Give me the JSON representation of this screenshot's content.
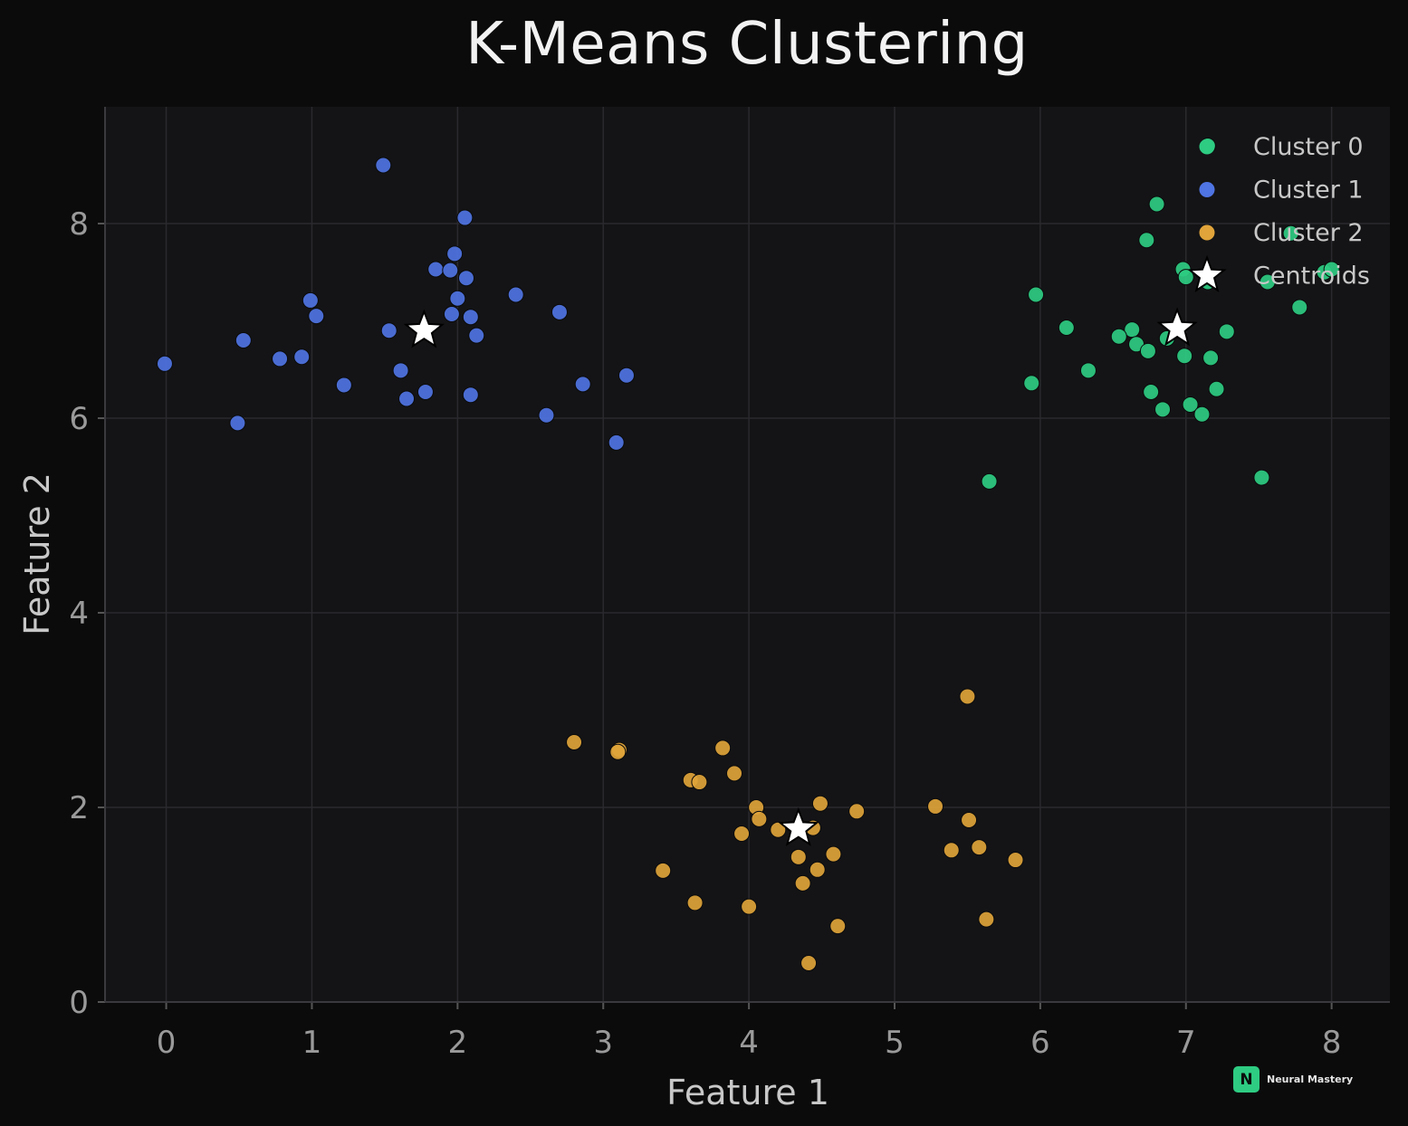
{
  "chart_data": {
    "type": "scatter",
    "title": "K-Means Clustering",
    "xlabel": "Feature 1",
    "ylabel": "Feature 2",
    "xlim": [
      -0.42,
      8.4
    ],
    "ylim": [
      0,
      9.2
    ],
    "xticks": [
      0,
      1,
      2,
      3,
      4,
      5,
      6,
      7,
      8
    ],
    "yticks": [
      0,
      2,
      4,
      6,
      8
    ],
    "grid": true,
    "legend_position": "top-right",
    "colors": {
      "background": "#0b0b0c",
      "plot_area": "#141416",
      "grid": "#2a2a2e",
      "cluster0": "#2ecc82",
      "cluster1": "#4f74e3",
      "cluster2": "#e0a43a",
      "centroid": "#ffffff"
    },
    "series": [
      {
        "name": "Cluster 0",
        "color": "#2ecc82",
        "points": [
          [
            7.15,
            8.8
          ],
          [
            6.8,
            8.2
          ],
          [
            6.73,
            7.83
          ],
          [
            7.72,
            7.9
          ],
          [
            6.98,
            7.53
          ],
          [
            7.0,
            7.45
          ],
          [
            7.15,
            7.4
          ],
          [
            7.56,
            7.4
          ],
          [
            7.95,
            7.5
          ],
          [
            8.0,
            7.53
          ],
          [
            7.78,
            7.14
          ],
          [
            5.97,
            7.27
          ],
          [
            6.18,
            6.93
          ],
          [
            6.63,
            6.91
          ],
          [
            6.54,
            6.84
          ],
          [
            6.87,
            6.82
          ],
          [
            6.66,
            6.76
          ],
          [
            6.74,
            6.69
          ],
          [
            7.28,
            6.89
          ],
          [
            6.99,
            6.64
          ],
          [
            7.17,
            6.62
          ],
          [
            6.33,
            6.49
          ],
          [
            5.94,
            6.36
          ],
          [
            6.76,
            6.27
          ],
          [
            7.21,
            6.3
          ],
          [
            6.84,
            6.09
          ],
          [
            7.03,
            6.14
          ],
          [
            7.11,
            6.04
          ],
          [
            5.65,
            5.35
          ],
          [
            7.52,
            5.39
          ]
        ]
      },
      {
        "name": "Cluster 1",
        "color": "#4f74e3",
        "points": [
          [
            1.49,
            8.6
          ],
          [
            2.05,
            8.06
          ],
          [
            1.98,
            7.69
          ],
          [
            1.85,
            7.53
          ],
          [
            1.95,
            7.52
          ],
          [
            2.06,
            7.44
          ],
          [
            0.99,
            7.21
          ],
          [
            2.0,
            7.23
          ],
          [
            2.4,
            7.27
          ],
          [
            1.03,
            7.05
          ],
          [
            1.96,
            7.07
          ],
          [
            2.09,
            7.04
          ],
          [
            2.7,
            7.09
          ],
          [
            1.53,
            6.9
          ],
          [
            2.13,
            6.85
          ],
          [
            0.53,
            6.8
          ],
          [
            0.78,
            6.61
          ],
          [
            0.93,
            6.63
          ],
          [
            -0.01,
            6.56
          ],
          [
            1.61,
            6.49
          ],
          [
            3.16,
            6.44
          ],
          [
            1.22,
            6.34
          ],
          [
            2.86,
            6.35
          ],
          [
            1.78,
            6.27
          ],
          [
            1.65,
            6.2
          ],
          [
            2.09,
            6.24
          ],
          [
            2.61,
            6.03
          ],
          [
            0.49,
            5.95
          ],
          [
            3.09,
            5.75
          ]
        ]
      },
      {
        "name": "Cluster 2",
        "color": "#e0a43a",
        "points": [
          [
            5.5,
            3.14
          ],
          [
            2.8,
            2.67
          ],
          [
            3.11,
            2.59
          ],
          [
            3.1,
            2.57
          ],
          [
            3.82,
            2.61
          ],
          [
            3.9,
            2.35
          ],
          [
            3.6,
            2.28
          ],
          [
            3.66,
            2.26
          ],
          [
            4.05,
            2.0
          ],
          [
            4.49,
            2.04
          ],
          [
            5.28,
            2.01
          ],
          [
            4.74,
            1.96
          ],
          [
            4.07,
            1.88
          ],
          [
            5.51,
            1.87
          ],
          [
            4.2,
            1.77
          ],
          [
            4.44,
            1.79
          ],
          [
            3.95,
            1.73
          ],
          [
            5.39,
            1.56
          ],
          [
            5.58,
            1.59
          ],
          [
            4.58,
            1.52
          ],
          [
            4.34,
            1.49
          ],
          [
            5.83,
            1.46
          ],
          [
            3.41,
            1.35
          ],
          [
            4.47,
            1.36
          ],
          [
            4.37,
            1.22
          ],
          [
            3.63,
            1.02
          ],
          [
            4.0,
            0.98
          ],
          [
            5.63,
            0.85
          ],
          [
            4.61,
            0.78
          ],
          [
            4.41,
            0.4
          ]
        ]
      },
      {
        "name": "Centroids",
        "color": "#ffffff",
        "marker": "star",
        "points": [
          [
            1.77,
            6.9
          ],
          [
            6.94,
            6.92
          ],
          [
            4.34,
            1.78
          ]
        ]
      }
    ]
  },
  "watermark": {
    "badge": "N",
    "text": "Neural Mastery"
  }
}
